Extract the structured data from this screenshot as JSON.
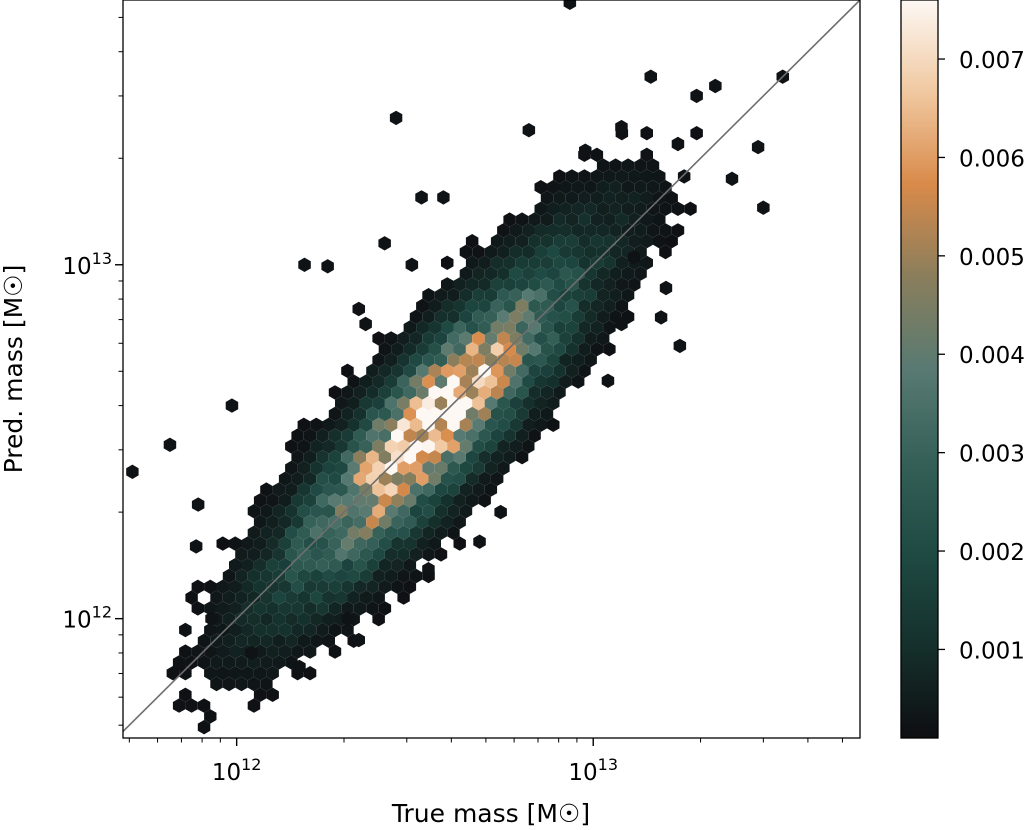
{
  "chart_data": {
    "type": "heatmap",
    "subtype": "hexbin",
    "xlabel": "True mass [M☉]",
    "ylabel": "Pred. mass [M☉]",
    "xscale": "log",
    "yscale": "log",
    "xlim": [
      480000000000.0,
      56000000000000.0
    ],
    "ylim": [
      460000000000.0,
      56000000000000.0
    ],
    "x_tick_labels": [
      {
        "value": 1000000000000.0,
        "base": "10",
        "exp": "12"
      },
      {
        "value": 10000000000000.0,
        "base": "10",
        "exp": "13"
      }
    ],
    "y_tick_labels": [
      {
        "value": 1000000000000.0,
        "base": "10",
        "exp": "12"
      },
      {
        "value": 10000000000000.0,
        "base": "10",
        "exp": "13"
      }
    ],
    "reference_line": {
      "type": "y=x",
      "color": "#6e6e6e"
    },
    "grid": false,
    "colorbar": {
      "range": [
        0.0001,
        0.0076
      ],
      "ticks": [
        0.001,
        0.002,
        0.003,
        0.004,
        0.005,
        0.006,
        0.007
      ],
      "tick_labels": [
        "0.001",
        "0.002",
        "0.003",
        "0.004",
        "0.005",
        "0.006",
        "0.007"
      ],
      "colormap": [
        "#0e0e12",
        "#15302c",
        "#1f4a43",
        "#356058",
        "#587a72",
        "#8a7e5c",
        "#d98a4a",
        "#f0c8a0",
        "#fdf8f4"
      ]
    },
    "density_peak": {
      "x": 4500000000000.0,
      "y": 4400000000000.0,
      "value": 0.0076
    },
    "relation": {
      "type": "log-normal scatter around y=x",
      "log10_sigma_y": 0.15,
      "log10_x_mean": 12.55,
      "log10_x_sd": 0.27
    },
    "outlier_bins": [
      [
        510000000000.0,
        2600000000000.0
      ],
      [
        650000000000.0,
        3100000000000.0
      ],
      [
        690000000000.0,
        750000000000.0
      ],
      [
        770000000000.0,
        1600000000000.0
      ],
      [
        780000000000.0,
        2100000000000.0
      ],
      [
        850000000000.0,
        1000000000000.0
      ],
      [
        970000000000.0,
        4000000000000.0
      ],
      [
        1100000000000.0,
        800000000000.0
      ],
      [
        1550000000000.0,
        10000000000000.0
      ],
      [
        1800000000000.0,
        9900000000000.0
      ],
      [
        1500000000000.0,
        730000000000.0
      ],
      [
        2200000000000.0,
        870000000000.0
      ],
      [
        2050000000000.0,
        1000000000000.0
      ],
      [
        2200000000000.0,
        7500000000000.0
      ],
      [
        2300000000000.0,
        6800000000000.0
      ],
      [
        2600000000000.0,
        11500000000000.0
      ],
      [
        2800000000000.0,
        26000000000000.0
      ],
      [
        3100000000000.0,
        10000000000000.0
      ],
      [
        3300000000000.0,
        15500000000000.0
      ],
      [
        3800000000000.0,
        15500000000000.0
      ],
      [
        3450000000000.0,
        1380000000000.0
      ],
      [
        4800000000000.0,
        1650000000000.0
      ],
      [
        5500000000000.0,
        2000000000000.0
      ],
      [
        6600000000000.0,
        24000000000000.0
      ],
      [
        8600000000000.0,
        55000000000000.0
      ],
      [
        12000000000000.0,
        24500000000000.0
      ],
      [
        14500000000000.0,
        34000000000000.0
      ],
      [
        15500000000000.0,
        7100000000000.0
      ],
      [
        17500000000000.0,
        5900000000000.0
      ],
      [
        19500000000000.0,
        30000000000000.0
      ],
      [
        22000000000000.0,
        32000000000000.0
      ],
      [
        24500000000000.0,
        17500000000000.0
      ],
      [
        29000000000000.0,
        21500000000000.0
      ],
      [
        30000000000000.0,
        14500000000000.0
      ],
      [
        34000000000000.0,
        34000000000000.0
      ],
      [
        12000000000000.0,
        6800000000000.0
      ],
      [
        11000000000000.0,
        4700000000000.0
      ],
      [
        9500000000000.0,
        21000000000000.0
      ],
      [
        13000000000000.0,
        10500000000000.0
      ],
      [
        16000000000000.0,
        8600000000000.0
      ]
    ]
  }
}
